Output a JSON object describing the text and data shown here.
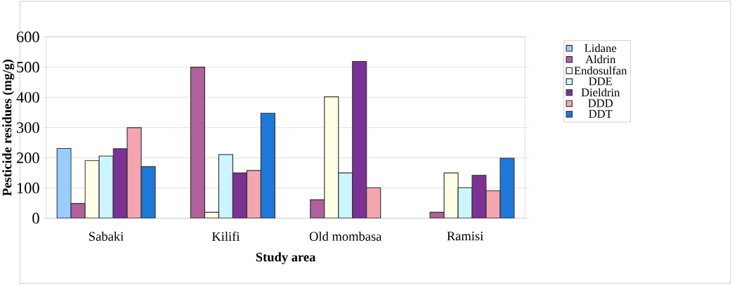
{
  "chart_data": {
    "type": "bar",
    "xlabel": "Study area",
    "ylabel": "Pesticide residues (mg/g)",
    "categories": [
      "Sabaki",
      "Kilifi",
      "Old mombasa",
      "Ramisi"
    ],
    "series": [
      {
        "name": "Lidane",
        "color": "#99ccff",
        "values": [
          231,
          null,
          null,
          null
        ]
      },
      {
        "name": "Aldrin",
        "color": "#b0609a",
        "values": [
          49,
          500,
          61,
          20
        ]
      },
      {
        "name": "Endosulfan",
        "color": "#ffffe6",
        "values": [
          191,
          20,
          402,
          150
        ]
      },
      {
        "name": "DDE",
        "color": "#ccf5ff",
        "values": [
          206,
          211,
          150,
          101
        ]
      },
      {
        "name": "Dieldrin",
        "color": "#7b3294",
        "values": [
          230,
          150,
          519,
          142
        ]
      },
      {
        "name": "DDD",
        "color": "#f4a6b0",
        "values": [
          300,
          158,
          101,
          91
        ]
      },
      {
        "name": "DDT",
        "color": "#1e78d8",
        "values": [
          171,
          348,
          null,
          199
        ]
      }
    ],
    "ylim": [
      0,
      600
    ],
    "yticks": [
      0,
      100,
      200,
      300,
      400,
      500,
      600
    ],
    "grid": "y",
    "legend": "right"
  }
}
